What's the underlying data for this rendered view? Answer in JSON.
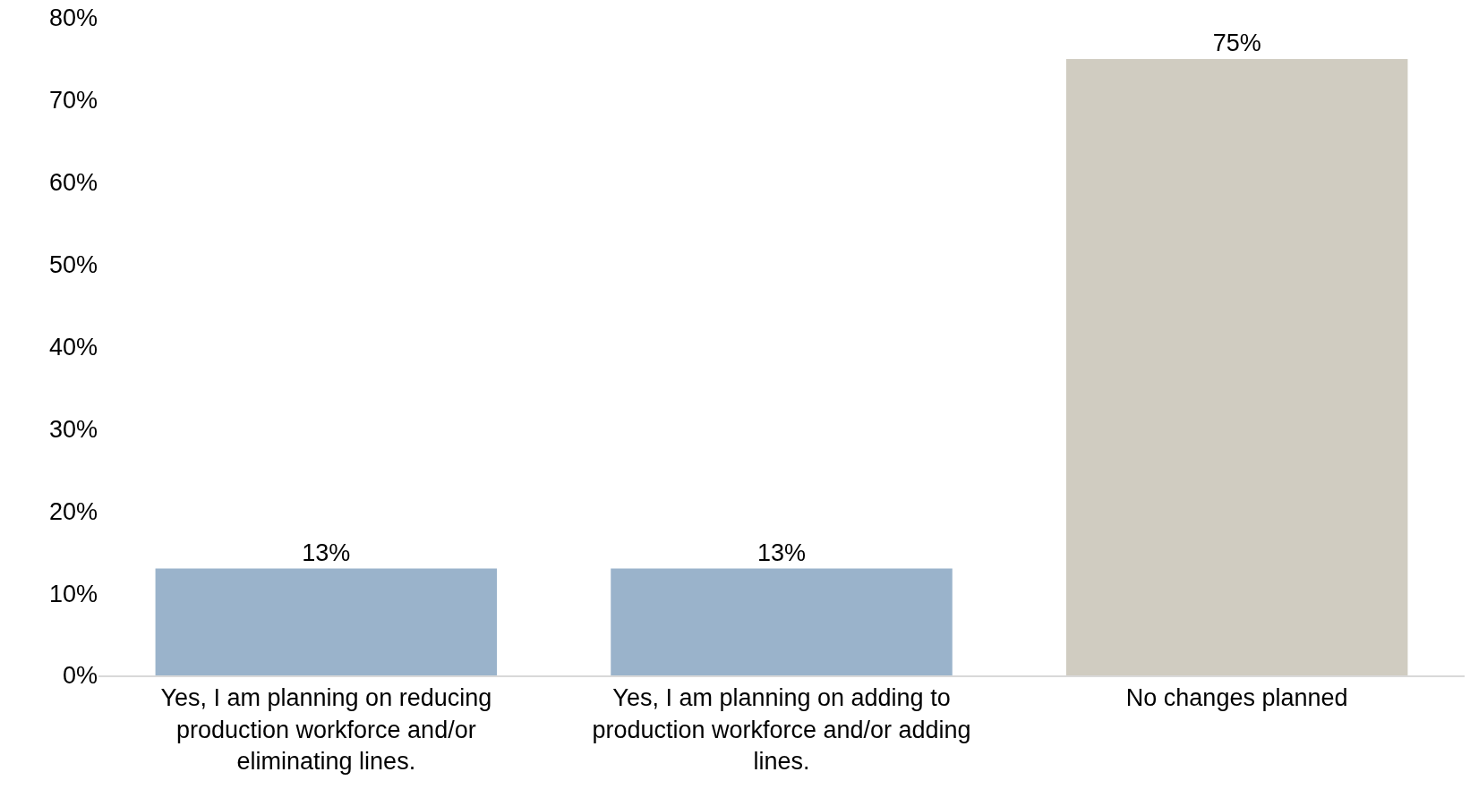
{
  "chart_data": {
    "type": "bar",
    "categories": [
      "Yes, I am planning on reducing production workforce and/or eliminating lines.",
      "Yes, I am planning on adding to production workforce and/or adding lines.",
      "No changes planned"
    ],
    "values": [
      13,
      13,
      75
    ],
    "colors": [
      "#9ab3cb",
      "#9ab3cb",
      "#d0ccc1"
    ],
    "value_labels": [
      "13%",
      "13%",
      "75%"
    ],
    "ylim": [
      0,
      80
    ],
    "yticks": [
      {
        "value": 0,
        "label": "0%"
      },
      {
        "value": 10,
        "label": "10%"
      },
      {
        "value": 20,
        "label": "20%"
      },
      {
        "value": 30,
        "label": "30%"
      },
      {
        "value": 40,
        "label": "40%"
      },
      {
        "value": 50,
        "label": "50%"
      },
      {
        "value": 60,
        "label": "60%"
      },
      {
        "value": 70,
        "label": "70%"
      },
      {
        "value": 80,
        "label": "80%"
      }
    ],
    "legend": false
  }
}
